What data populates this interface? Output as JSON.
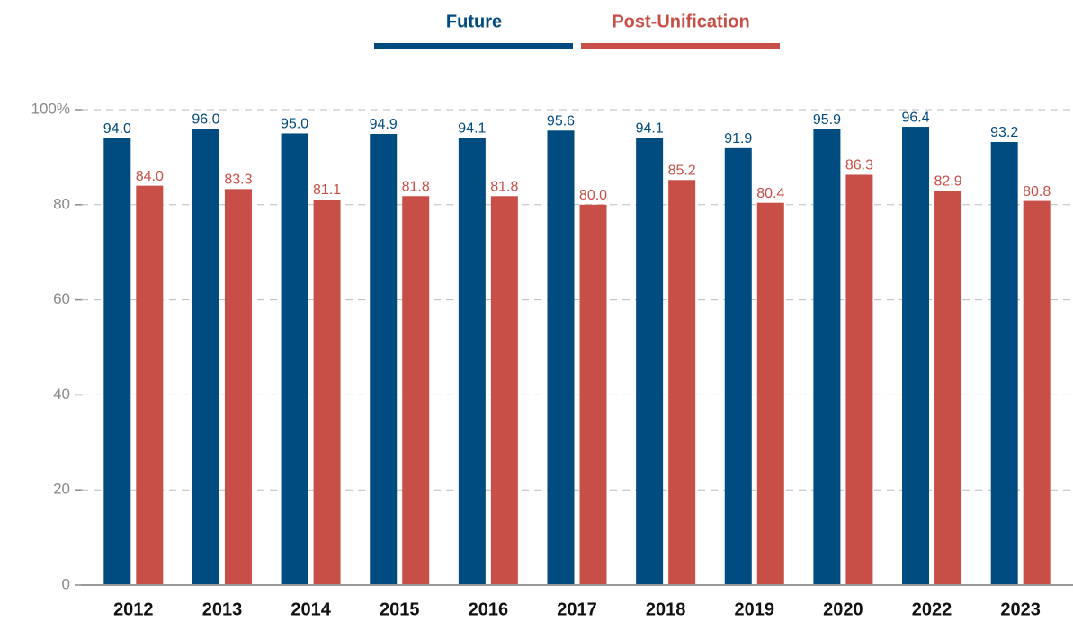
{
  "chart_data": {
    "type": "bar",
    "categories": [
      "2012",
      "2013",
      "2014",
      "2015",
      "2016",
      "2017",
      "2018",
      "2019",
      "2020",
      "2022",
      "2023"
    ],
    "series": [
      {
        "name": "Future",
        "color": "#004b7f",
        "values": [
          94.0,
          96.0,
          95.0,
          94.9,
          94.1,
          95.6,
          94.1,
          91.9,
          95.9,
          96.4,
          93.2
        ],
        "value_labels": [
          "94.0",
          "96.0",
          "95.0",
          "94.9",
          "94.1",
          "95.6",
          "94.1",
          "91.9",
          "95.9",
          "96.4",
          "93.2"
        ]
      },
      {
        "name": "Post-Unification",
        "color": "#c84f47",
        "values": [
          84.0,
          83.3,
          81.1,
          81.8,
          81.8,
          80.0,
          85.2,
          80.4,
          86.3,
          82.9,
          80.8
        ],
        "value_labels": [
          "84.0",
          "83.3",
          "81.1",
          "81.8",
          "81.8",
          "80.0",
          "85.2",
          "80.4",
          "86.3",
          "82.9",
          "80.8"
        ]
      }
    ],
    "ylim": [
      0,
      100
    ],
    "yticks": [
      0,
      20,
      40,
      60,
      80,
      {
        "value": 100,
        "label": "100%"
      }
    ],
    "grid": true,
    "legend": "top"
  }
}
